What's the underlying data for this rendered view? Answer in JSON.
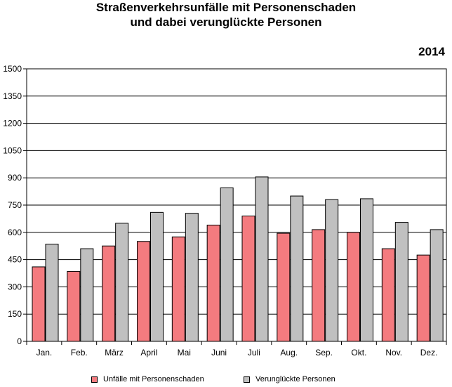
{
  "chart_data": {
    "type": "bar",
    "title_line1": "Straßenverkehrsunfälle mit Personenschaden",
    "title_line2": "und dabei verunglückte Personen",
    "year": "2014",
    "categories": [
      "Jan.",
      "Feb.",
      "März",
      "April",
      "Mai",
      "Juni",
      "Juli",
      "Aug.",
      "Sep.",
      "Okt.",
      "Nov.",
      "Dez."
    ],
    "series": [
      {
        "name": "Unfälle mit Personenschaden",
        "color": "#f47b7f",
        "values": [
          410,
          385,
          525,
          550,
          575,
          640,
          690,
          595,
          615,
          600,
          510,
          475
        ]
      },
      {
        "name": "Verunglückte Personen",
        "color": "#c0c0c0",
        "values": [
          535,
          510,
          650,
          710,
          705,
          845,
          905,
          800,
          780,
          785,
          655,
          615
        ]
      }
    ],
    "yticks": [
      0,
      150,
      300,
      450,
      600,
      750,
      900,
      1050,
      1200,
      1350,
      1500
    ],
    "ylim": [
      0,
      1500
    ],
    "grid": true,
    "legend_position": "bottom"
  }
}
